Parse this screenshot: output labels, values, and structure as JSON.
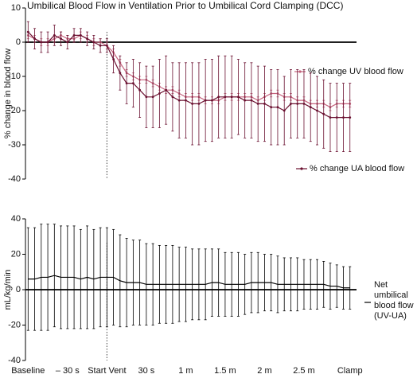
{
  "chart_data": [
    {
      "type": "line",
      "title": "Umbilical Blood Flow in Ventilation Prior to Umbilical Cord Clamping (DCC)",
      "y_label": "% change in blood flow",
      "x": [
        -60,
        -55,
        -50,
        -45,
        -40,
        -35,
        -30,
        -25,
        -20,
        -15,
        -10,
        -5,
        0,
        5,
        10,
        15,
        20,
        25,
        30,
        35,
        40,
        45,
        50,
        55,
        60,
        65,
        70,
        75,
        80,
        85,
        90,
        95,
        100,
        105,
        110,
        115,
        120,
        125,
        130,
        135,
        140,
        145,
        150,
        155,
        160,
        165,
        170,
        175,
        180,
        185
      ],
      "xlim": [
        -62,
        190
      ],
      "vline": 0,
      "ylim": [
        -40,
        10
      ],
      "yticks": [
        10,
        0,
        -10,
        -20,
        -30,
        -40
      ],
      "series": [
        {
          "name": "% change UV blood flow",
          "color": "#c4637d",
          "values": [
            2,
            1,
            0,
            0,
            1,
            2,
            1,
            1,
            2,
            1,
            0,
            0,
            -1,
            -3,
            -6,
            -9,
            -10,
            -11,
            -11,
            -12,
            -13,
            -14,
            -14,
            -15,
            -16,
            -16,
            -16,
            -17,
            -17,
            -17,
            -16,
            -16,
            -16,
            -16,
            -16,
            -17,
            -16,
            -15,
            -15,
            -16,
            -16,
            -17,
            -17,
            -18,
            -18,
            -18,
            -19,
            -18,
            -18,
            -18
          ],
          "errors": [
            1,
            1,
            1,
            1,
            1,
            1,
            1,
            1,
            1,
            1,
            1,
            1,
            1,
            1,
            1,
            1,
            1,
            1,
            1,
            1,
            1,
            1,
            1,
            1,
            1,
            1,
            1,
            1,
            1,
            1,
            1,
            1,
            1,
            1,
            1,
            1,
            1,
            1,
            1,
            1,
            1,
            1,
            1,
            1,
            1,
            1,
            1,
            1,
            1,
            1
          ]
        },
        {
          "name": "% change UA blood flow",
          "color": "#6a1030",
          "values": [
            3,
            1,
            0,
            0,
            2,
            1,
            0,
            2,
            2,
            1,
            0,
            -1,
            -1,
            -5,
            -9,
            -12,
            -12,
            -14,
            -16,
            -16,
            -15,
            -14,
            -16,
            -17,
            -17,
            -18,
            -18,
            -17,
            -17,
            -16,
            -16,
            -16,
            -16,
            -17,
            -17,
            -18,
            -18,
            -19,
            -19,
            -20,
            -18,
            -18,
            -18,
            -19,
            -20,
            -21,
            -22,
            -22,
            -22,
            -22
          ],
          "errors": [
            3,
            3,
            3,
            3,
            3,
            2,
            2,
            2,
            2,
            2,
            2,
            2,
            2,
            4,
            5,
            6,
            7,
            8,
            9,
            9,
            10,
            10,
            10,
            11,
            11,
            12,
            12,
            12,
            12,
            12,
            12,
            12,
            11,
            11,
            11,
            11,
            11,
            11,
            11,
            10,
            10,
            10,
            10,
            10,
            10,
            10,
            10,
            10,
            10,
            10
          ]
        }
      ]
    },
    {
      "type": "line",
      "y_label": "mL/kg/min",
      "x": [
        -60,
        -55,
        -50,
        -45,
        -40,
        -35,
        -30,
        -25,
        -20,
        -15,
        -10,
        -5,
        0,
        5,
        10,
        15,
        20,
        25,
        30,
        35,
        40,
        45,
        50,
        55,
        60,
        65,
        70,
        75,
        80,
        85,
        90,
        95,
        100,
        105,
        110,
        115,
        120,
        125,
        130,
        135,
        140,
        145,
        150,
        155,
        160,
        165,
        170,
        175,
        180,
        185
      ],
      "xlim": [
        -62,
        190
      ],
      "xticks": [
        {
          "value": -60,
          "label": "Baseline"
        },
        {
          "value": -30,
          "label": "– 30 s"
        },
        {
          "value": 0,
          "label": "Start Vent"
        },
        {
          "value": 30,
          "label": "30 s"
        },
        {
          "value": 60,
          "label": "1 m"
        },
        {
          "value": 90,
          "label": "1.5 m"
        },
        {
          "value": 120,
          "label": "2 m"
        },
        {
          "value": 150,
          "label": "2.5 m"
        },
        {
          "value": 185,
          "label": "Clamp"
        }
      ],
      "vline": 0,
      "ylim": [
        -40,
        40
      ],
      "yticks": [
        40,
        20,
        0,
        -20,
        -40
      ],
      "series": [
        {
          "name": "Net umbilical blood flow (UV-UA)",
          "color": "#000000",
          "values": [
            6,
            6,
            7,
            7,
            8,
            7,
            7,
            7,
            6,
            7,
            6,
            7,
            7,
            7,
            5,
            4,
            4,
            4,
            3,
            3,
            3,
            3,
            3,
            3,
            3,
            3,
            3,
            3,
            4,
            4,
            3,
            3,
            3,
            3,
            4,
            4,
            4,
            4,
            3,
            3,
            3,
            3,
            3,
            3,
            3,
            3,
            2,
            2,
            1,
            1
          ],
          "errors": [
            29,
            29,
            30,
            30,
            29,
            29,
            29,
            29,
            28,
            29,
            28,
            28,
            28,
            27,
            26,
            25,
            24,
            24,
            23,
            23,
            22,
            22,
            22,
            21,
            21,
            20,
            20,
            20,
            19,
            19,
            18,
            18,
            18,
            17,
            17,
            17,
            16,
            16,
            16,
            15,
            15,
            15,
            14,
            14,
            14,
            13,
            13,
            12,
            12,
            12
          ]
        }
      ]
    }
  ]
}
